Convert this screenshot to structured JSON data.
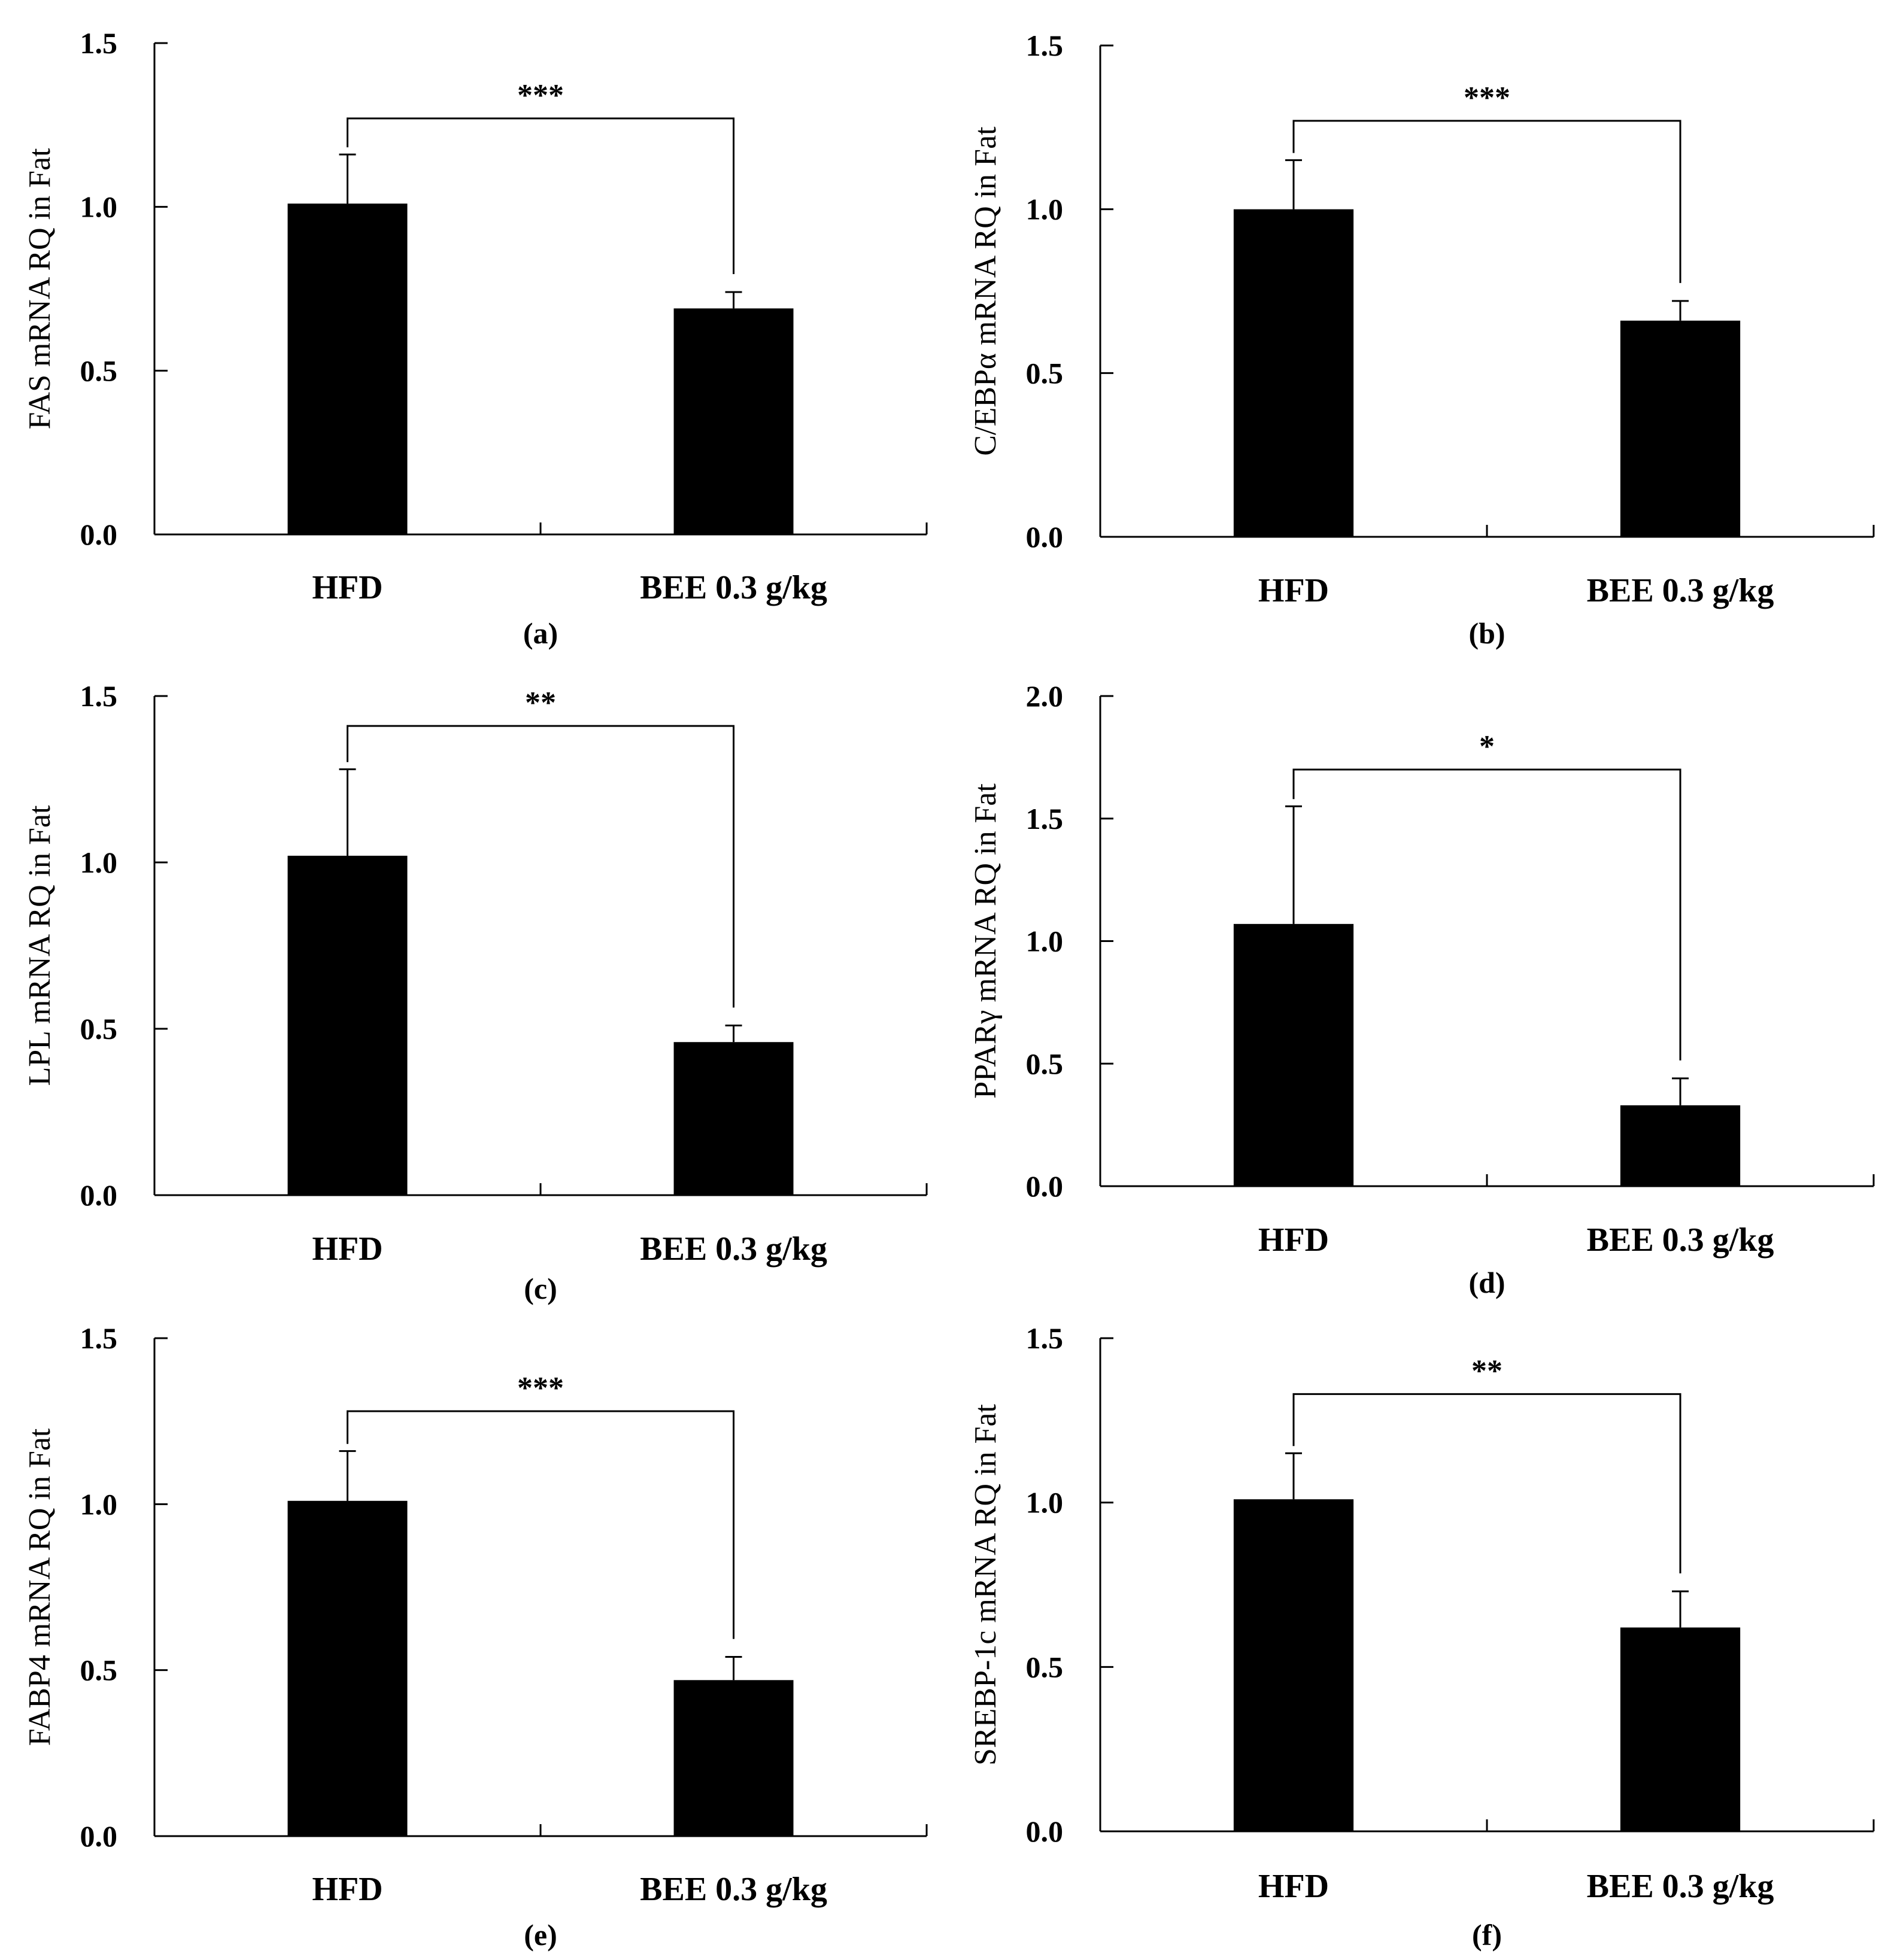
{
  "figure": {
    "panels_layout": "3 rows x 2 columns",
    "bar_color": "#000000"
  },
  "chart_data": [
    {
      "type": "bar",
      "panel": "(a)",
      "ylabel": "FAS mRNA RQ in Fat",
      "categories": [
        "HFD",
        "BEE 0.3 g/kg"
      ],
      "values": [
        1.01,
        0.69
      ],
      "errors": [
        0.15,
        0.05
      ],
      "ylim": [
        0,
        1.5
      ],
      "yticks": [
        "0.0",
        "0.5",
        "1.0",
        "1.5"
      ],
      "significance": "***",
      "bracket_y": 1.27
    },
    {
      "type": "bar",
      "panel": "(b)",
      "ylabel": "C/EBPα mRNA RQ in Fat",
      "categories": [
        "HFD",
        "BEE 0.3 g/kg"
      ],
      "values": [
        1.0,
        0.66
      ],
      "errors": [
        0.15,
        0.06
      ],
      "ylim": [
        0,
        1.5
      ],
      "yticks": [
        "0.0",
        "0.5",
        "1.0",
        "1.5"
      ],
      "significance": "***",
      "bracket_y": 1.27
    },
    {
      "type": "bar",
      "panel": "(c)",
      "ylabel": "LPL mRNA RQ in Fat",
      "categories": [
        "HFD",
        "BEE 0.3 g/kg"
      ],
      "values": [
        1.02,
        0.46
      ],
      "errors": [
        0.26,
        0.05
      ],
      "ylim": [
        0,
        1.5
      ],
      "yticks": [
        "0.0",
        "0.5",
        "1.0",
        "1.5"
      ],
      "significance": "**",
      "bracket_y": 1.41
    },
    {
      "type": "bar",
      "panel": "(d)",
      "ylabel": "PPARγ mRNA RQ in Fat",
      "categories": [
        "HFD",
        "BEE 0.3 g/kg"
      ],
      "values": [
        1.07,
        0.33
      ],
      "errors": [
        0.48,
        0.11
      ],
      "ylim": [
        0,
        2.0
      ],
      "yticks": [
        "0.0",
        "0.5",
        "1.0",
        "1.5",
        "2.0"
      ],
      "significance": "*",
      "bracket_y": 1.7
    },
    {
      "type": "bar",
      "panel": "(e)",
      "ylabel": "FABP4 mRNA RQ in Fat",
      "categories": [
        "HFD",
        "BEE 0.3 g/kg"
      ],
      "values": [
        1.01,
        0.47
      ],
      "errors": [
        0.15,
        0.07
      ],
      "ylim": [
        0,
        1.5
      ],
      "yticks": [
        "0.0",
        "0.5",
        "1.0",
        "1.5"
      ],
      "significance": "***",
      "bracket_y": 1.28
    },
    {
      "type": "bar",
      "panel": "(f)",
      "ylabel": "SREBP-1c mRNA RQ in Fat",
      "categories": [
        "HFD",
        "BEE 0.3 g/kg"
      ],
      "values": [
        1.01,
        0.62
      ],
      "errors": [
        0.14,
        0.11
      ],
      "ylim": [
        0,
        1.5
      ],
      "yticks": [
        "0.0",
        "0.5",
        "1.0",
        "1.5"
      ],
      "significance": "**",
      "bracket_y": 1.33
    }
  ]
}
